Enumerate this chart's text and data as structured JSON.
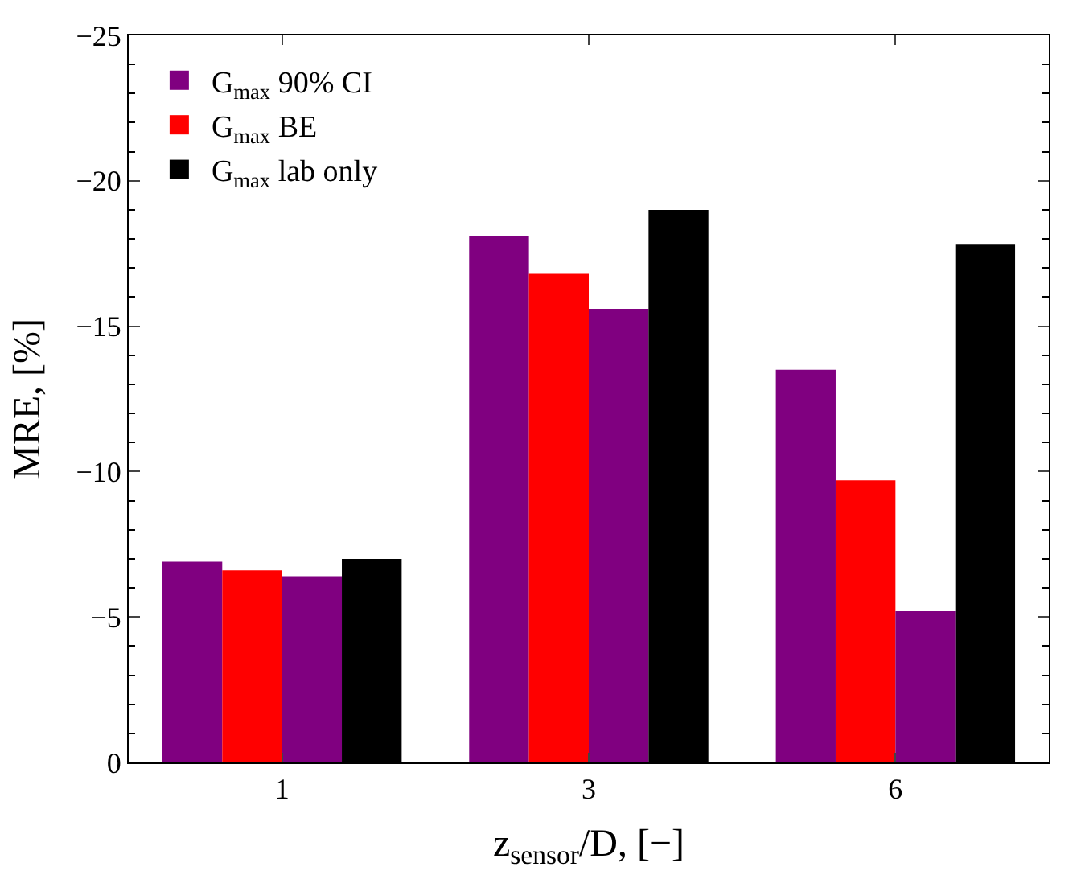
{
  "chart_data": {
    "type": "bar",
    "categories": [
      "1",
      "3",
      "6"
    ],
    "series": [
      {
        "name": "G$_{max}$ 90% CI",
        "color": "#800080",
        "values": [
          -6.9,
          -18.1,
          -13.5
        ]
      },
      {
        "name": "G$_{max}$ BE",
        "color": "#ff0000",
        "values": [
          -6.6,
          -16.8,
          -9.7
        ]
      },
      {
        "color": "#800080",
        "values": [
          -6.4,
          -15.6,
          -5.2
        ]
      },
      {
        "name": "G$_{max}$ lab only",
        "color": "#000000",
        "values": [
          -7.0,
          -19.0,
          -17.8
        ]
      }
    ],
    "xlabel": "z$_{sensor}$/D, [−]",
    "ylabel": "MRE, [%]",
    "ylim": [
      0,
      -25
    ],
    "yticks": [
      0,
      -5,
      -10,
      -15,
      -20,
      -25
    ],
    "legend": "top left"
  }
}
